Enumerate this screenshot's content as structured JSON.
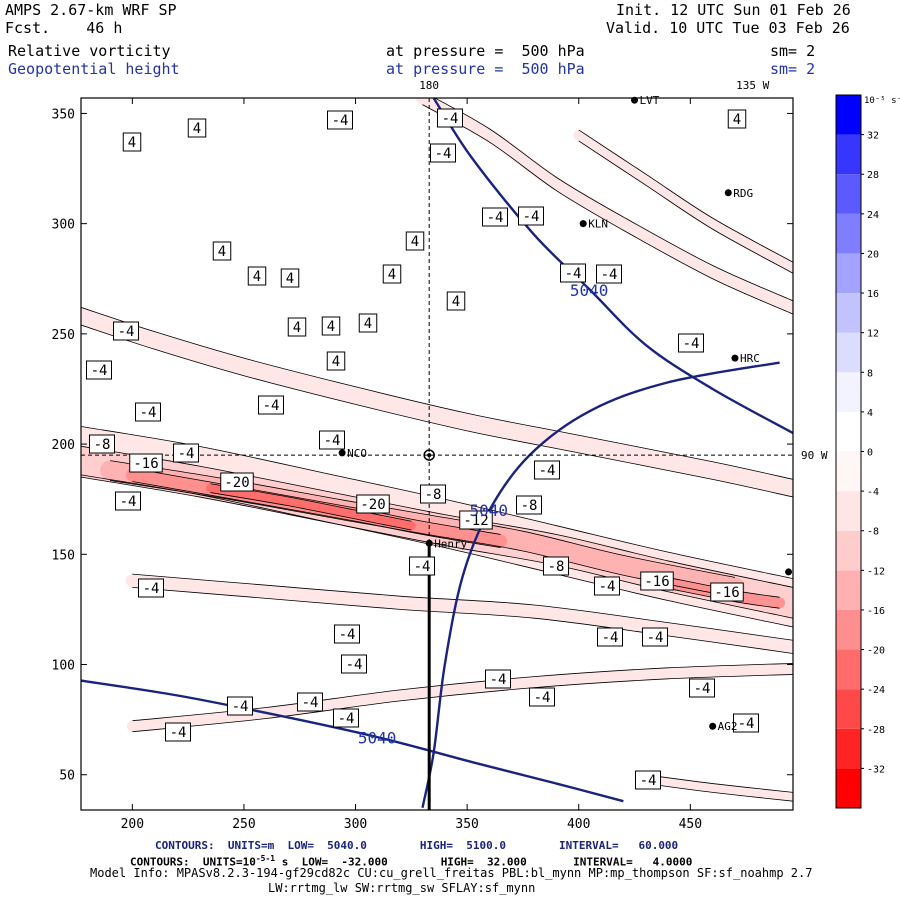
{
  "header": {
    "model": "AMPS 2.67-km WRF SP",
    "fcst": "Fcst.    46 h",
    "init": "Init. 12 UTC Sun 01 Feb 26",
    "valid": "Valid. 10 UTC Tue 03 Feb 26",
    "field1_name": "Relative vorticity",
    "field1_level": "at pressure =  500 hPa",
    "field1_sm": "sm= 2",
    "field2_name": "Geopotential height",
    "field2_level": "at pressure =  500 hPa",
    "field2_sm": "sm= 2"
  },
  "footer": {
    "contours1": "CONTOURS:  UNITS=m  LOW=  5040.0        HIGH=  5100.0        INTERVAL=   60.000",
    "contours2_prefix": "CONTOURS:  UNITS=10",
    "contours2_exp": "-5",
    "contours2_suffix": " s  LOW=  -32.000        HIGH=  32.000       INTERVAL=   4.0000",
    "contours2_sup": "-1",
    "model_info": "Model Info: MPASv8.2.3-194-gf29cd82c CU:cu_grell_freitas PBL:bl_mynn MP:mp_thompson SF:sf_noahmp 2.7",
    "model_info2": "LW:rrtmg_lw SW:rrtmg_sw SFLAY:sf_mynn"
  },
  "chart_data": {
    "type": "contour",
    "title": "Relative vorticity / Geopotential height at 500 hPa",
    "x_ticks": [
      200,
      250,
      300,
      350,
      400,
      450
    ],
    "y_ticks": [
      50,
      100,
      150,
      200,
      250,
      300,
      350
    ],
    "xlim": [
      177,
      496
    ],
    "ylim": [
      34,
      357
    ],
    "meridian_labels": [
      {
        "text": "180",
        "x": 333,
        "side": "top"
      },
      {
        "text": "135 W",
        "x": 475,
        "side": "top"
      },
      {
        "text": "90 W",
        "y": 195,
        "side": "right"
      }
    ],
    "colorbar": {
      "unit_label": "10",
      "unit_exp": "-5",
      "unit_suffix": " s",
      "unit_sup": "-1",
      "levels": [
        -36,
        -32,
        -28,
        -24,
        -20,
        -16,
        -12,
        -8,
        -4,
        0,
        4,
        8,
        12,
        16,
        20,
        24,
        28,
        32,
        36
      ],
      "tick_labels": [
        "32",
        "28",
        "24",
        "20",
        "16",
        "12",
        "8",
        "4",
        "0",
        "-4",
        "-8",
        "-12",
        "-16",
        "-20",
        "-24",
        "-28",
        "-32"
      ],
      "colors": [
        "#ff0000",
        "#ff2424",
        "#ff4848",
        "#ff6c6c",
        "#ff8e8e",
        "#ffb0b0",
        "#ffcccc",
        "#ffe6e6",
        "#fff6f6",
        "#ffffff",
        "#f3f3ff",
        "#dcdcff",
        "#c2c2ff",
        "#a2a2ff",
        "#7e7eff",
        "#5a5aff",
        "#3636ff",
        "#0000ff"
      ]
    },
    "height_contours": [
      {
        "label": "5040",
        "points": [
          [
            175,
            93
          ],
          [
            220,
            86
          ],
          [
            265,
            77
          ],
          [
            310,
            67
          ],
          [
            355,
            55
          ],
          [
            390,
            46
          ],
          [
            420,
            38
          ]
        ]
      },
      {
        "label": "5040",
        "points": [
          [
            330,
            35
          ],
          [
            335,
            60
          ],
          [
            340,
            100
          ],
          [
            348,
            140
          ],
          [
            360,
            170
          ],
          [
            378,
            195
          ],
          [
            405,
            215
          ],
          [
            440,
            228
          ],
          [
            490,
            237
          ]
        ]
      },
      {
        "label": "5040",
        "points": [
          [
            335,
            357
          ],
          [
            352,
            330
          ],
          [
            380,
            295
          ],
          [
            405,
            270
          ],
          [
            430,
            245
          ],
          [
            460,
            225
          ],
          [
            496,
            205
          ]
        ]
      }
    ],
    "vorticity_bands": [
      {
        "level": -4,
        "label": "-4",
        "width": 22,
        "points": [
          [
            177,
            197
          ],
          [
            230,
            188
          ],
          [
            290,
            175
          ],
          [
            340,
            164
          ],
          [
            390,
            152
          ],
          [
            440,
            140
          ],
          [
            496,
            128
          ]
        ]
      },
      {
        "level": -8,
        "label": "-8",
        "width": 14,
        "points": [
          [
            177,
            192
          ],
          [
            230,
            183
          ],
          [
            290,
            171
          ],
          [
            340,
            161
          ],
          [
            390,
            152
          ],
          [
            440,
            140
          ],
          [
            496,
            128
          ]
        ]
      },
      {
        "level": -12,
        "label": "-12",
        "width": 9,
        "points": [
          [
            190,
            188
          ],
          [
            240,
            180
          ],
          [
            295,
            170
          ],
          [
            335,
            163
          ],
          [
            375,
            156
          ],
          [
            420,
            145
          ],
          [
            470,
            135
          ]
        ]
      },
      {
        "level": -16,
        "label": "-16",
        "width": 6,
        "points": [
          [
            200,
            186
          ],
          [
            245,
            178
          ],
          [
            300,
            168
          ],
          [
            330,
            162
          ],
          [
            365,
            156
          ]
        ]
      },
      {
        "level": -20,
        "label": "-20",
        "width": 4,
        "points": [
          [
            235,
            180
          ],
          [
            270,
            174
          ],
          [
            305,
            167
          ],
          [
            325,
            163
          ]
        ]
      },
      {
        "level": -16,
        "label": "-16",
        "width": 5,
        "points": [
          [
            440,
            137
          ],
          [
            470,
            131
          ],
          [
            490,
            128
          ]
        ]
      },
      {
        "level": -4,
        "label": "-4",
        "width": 8,
        "points": [
          [
            177,
            258
          ],
          [
            210,
            247
          ],
          [
            250,
            235
          ],
          [
            300,
            222
          ],
          [
            350,
            210
          ],
          [
            400,
            200
          ],
          [
            460,
            188
          ],
          [
            496,
            180
          ]
        ]
      },
      {
        "level": -4,
        "label": "-4",
        "width": 6,
        "points": [
          [
            200,
            138
          ],
          [
            260,
            133
          ],
          [
            320,
            128
          ],
          [
            380,
            124
          ],
          [
            440,
            116
          ],
          [
            496,
            108
          ]
        ]
      },
      {
        "level": -4,
        "label": "-4",
        "width": 5,
        "points": [
          [
            200,
            72
          ],
          [
            260,
            78
          ],
          [
            320,
            86
          ],
          [
            380,
            92
          ],
          [
            440,
            96
          ],
          [
            496,
            98
          ]
        ]
      },
      {
        "level": -4,
        "label": "-4",
        "width": 6,
        "points": [
          [
            330,
            357
          ],
          [
            360,
            340
          ],
          [
            390,
            318
          ],
          [
            420,
            300
          ],
          [
            460,
            278
          ],
          [
            496,
            262
          ]
        ]
      },
      {
        "level": -4,
        "label": "-4",
        "width": 5,
        "points": [
          [
            400,
            340
          ],
          [
            430,
            320
          ],
          [
            460,
            300
          ],
          [
            496,
            280
          ]
        ]
      },
      {
        "level": -4,
        "label": "-4",
        "width": 4,
        "points": [
          [
            430,
            48
          ],
          [
            460,
            44
          ],
          [
            496,
            40
          ]
        ]
      }
    ],
    "vorticity_labels": [
      {
        "text": "4",
        "x": 132,
        "y": 142
      },
      {
        "text": "4",
        "x": 197,
        "y": 128
      },
      {
        "text": "-4",
        "x": 340,
        "y": 120
      },
      {
        "text": "-4",
        "x": 450,
        "y": 118
      },
      {
        "text": "4",
        "x": 737,
        "y": 119
      },
      {
        "text": "-4",
        "x": 443,
        "y": 153
      },
      {
        "text": "-4",
        "x": 495,
        "y": 217
      },
      {
        "text": "-4",
        "x": 531,
        "y": 216
      },
      {
        "text": "4",
        "x": 415,
        "y": 241
      },
      {
        "text": "4",
        "x": 222,
        "y": 251
      },
      {
        "text": "4",
        "x": 257,
        "y": 276
      },
      {
        "text": "4",
        "x": 290,
        "y": 278
      },
      {
        "text": "4",
        "x": 392,
        "y": 274
      },
      {
        "text": "-4",
        "x": 573,
        "y": 273
      },
      {
        "text": "-4",
        "x": 609,
        "y": 274
      },
      {
        "text": "4",
        "x": 456,
        "y": 301
      },
      {
        "text": "4",
        "x": 297,
        "y": 327
      },
      {
        "text": "4",
        "x": 331,
        "y": 326
      },
      {
        "text": "4",
        "x": 368,
        "y": 323
      },
      {
        "text": "-4",
        "x": 126,
        "y": 331
      },
      {
        "text": "-4",
        "x": 691,
        "y": 343
      },
      {
        "text": "4",
        "x": 336,
        "y": 361
      },
      {
        "text": "-4",
        "x": 99,
        "y": 370
      },
      {
        "text": "-4",
        "x": 271,
        "y": 405
      },
      {
        "text": "-4",
        "x": 148,
        "y": 412
      },
      {
        "text": "-8",
        "x": 102,
        "y": 444
      },
      {
        "text": "-4",
        "x": 186,
        "y": 453
      },
      {
        "text": "-4",
        "x": 332,
        "y": 440
      },
      {
        "text": "-16",
        "x": 146,
        "y": 463
      },
      {
        "text": "-4",
        "x": 547,
        "y": 470
      },
      {
        "text": "-20",
        "x": 237,
        "y": 482
      },
      {
        "text": "-8",
        "x": 433,
        "y": 494
      },
      {
        "text": "-4",
        "x": 128,
        "y": 501
      },
      {
        "text": "-20",
        "x": 373,
        "y": 504
      },
      {
        "text": "-8",
        "x": 529,
        "y": 505
      },
      {
        "text": "-12",
        "x": 476,
        "y": 520
      },
      {
        "text": "-8",
        "x": 556,
        "y": 566
      },
      {
        "text": "-4",
        "x": 422,
        "y": 566
      },
      {
        "text": "-16",
        "x": 657,
        "y": 581
      },
      {
        "text": "-4",
        "x": 607,
        "y": 586
      },
      {
        "text": "-16",
        "x": 727,
        "y": 592
      },
      {
        "text": "-4",
        "x": 151,
        "y": 588
      },
      {
        "text": "-4",
        "x": 347,
        "y": 634
      },
      {
        "text": "-4",
        "x": 610,
        "y": 637
      },
      {
        "text": "-4",
        "x": 655,
        "y": 637
      },
      {
        "text": "-4",
        "x": 354,
        "y": 664
      },
      {
        "text": "-4",
        "x": 498,
        "y": 679
      },
      {
        "text": "-4",
        "x": 542,
        "y": 697
      },
      {
        "text": "-4",
        "x": 702,
        "y": 688
      },
      {
        "text": "-4",
        "x": 310,
        "y": 702
      },
      {
        "text": "-4",
        "x": 240,
        "y": 706
      },
      {
        "text": "-4",
        "x": 346,
        "y": 718
      },
      {
        "text": "-4",
        "x": 178,
        "y": 732
      },
      {
        "text": "-4",
        "x": 746,
        "y": 723
      },
      {
        "text": "-4",
        "x": 648,
        "y": 780
      }
    ],
    "stations": [
      {
        "name": "NCO",
        "x": 294,
        "y": 196
      },
      {
        "name": "KLN",
        "x": 402,
        "y": 300
      },
      {
        "name": "RDG",
        "x": 467,
        "y": 314
      },
      {
        "name": "HRC",
        "x": 470,
        "y": 239
      },
      {
        "name": "Henry",
        "x": 333,
        "y": 155
      },
      {
        "name": "AG2",
        "x": 460,
        "y": 72
      },
      {
        "name": "LVT",
        "x": 425,
        "y": 356
      },
      {
        "name": "",
        "x": 494,
        "y": 142
      }
    ],
    "center_marker": {
      "x": 333,
      "y": 195
    }
  }
}
